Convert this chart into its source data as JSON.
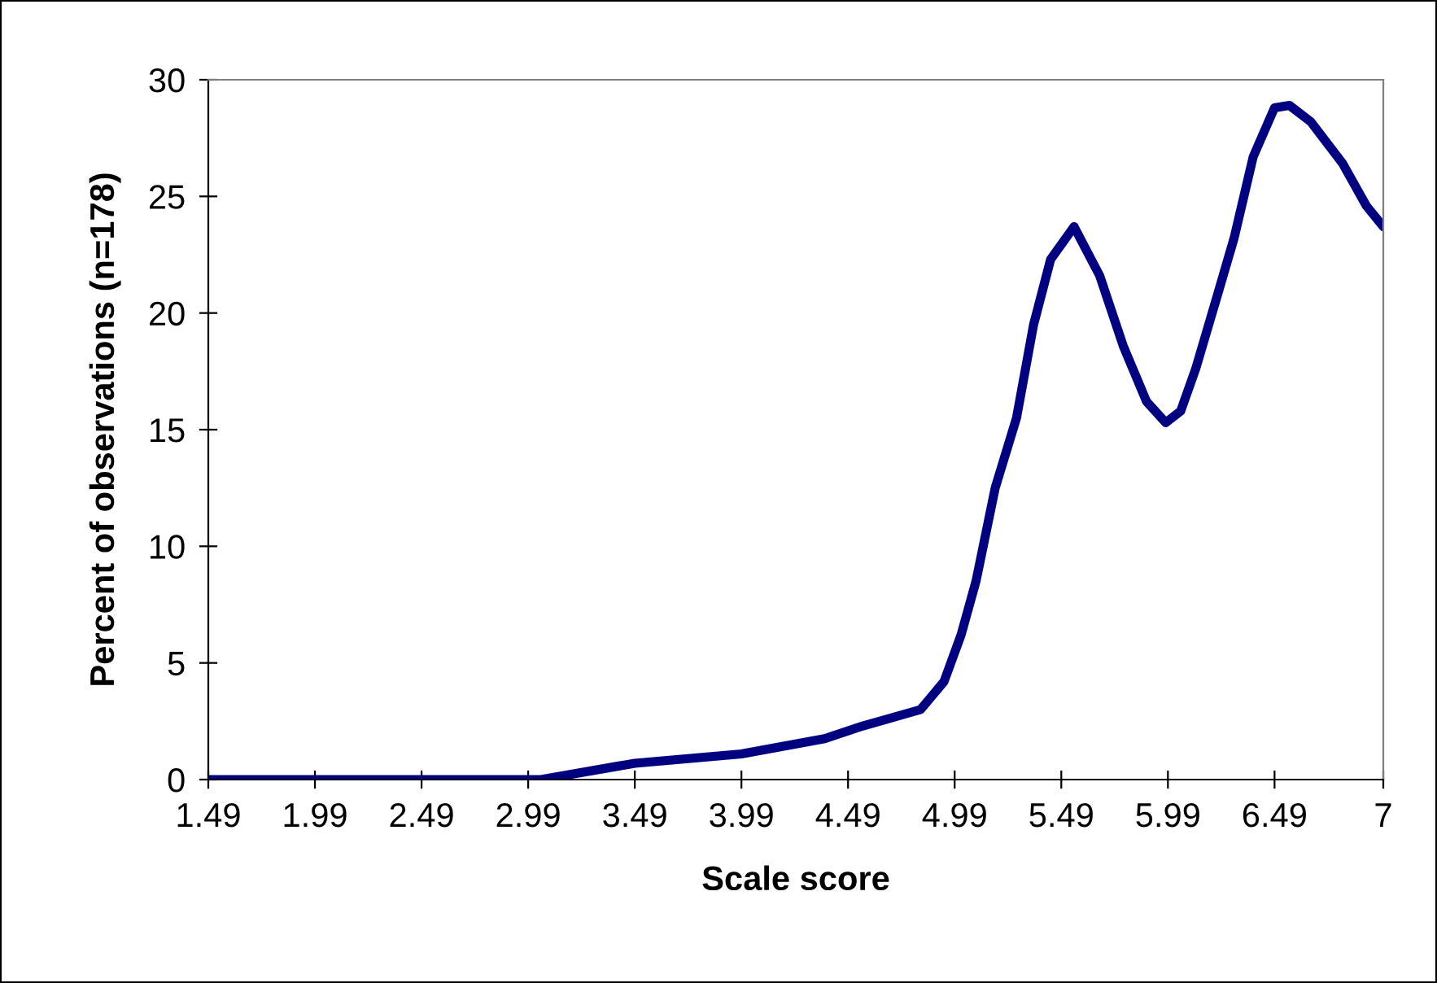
{
  "chart_data": {
    "type": "line",
    "xlabel": "Scale score",
    "ylabel": "Percent of observations (n=178)",
    "xlim": [
      1.49,
      7
    ],
    "xticks": [
      1.49,
      1.99,
      2.49,
      2.99,
      3.49,
      3.99,
      4.49,
      4.99,
      5.49,
      5.99,
      6.49,
      7
    ],
    "ylim": [
      0,
      30
    ],
    "yticks": [
      0,
      5,
      10,
      15,
      20,
      25,
      30
    ],
    "grid": false,
    "legend": false,
    "marker": "none",
    "line_style": "solid",
    "series": [
      {
        "color": "#000080",
        "x": [
          1.49,
          2.49,
          3.05,
          3.49,
          3.99,
          4.38,
          4.56,
          4.83,
          4.94,
          5.02,
          5.09,
          5.18,
          5.28,
          5.36,
          5.44,
          5.55,
          5.67,
          5.78,
          5.89,
          5.98,
          6.05,
          6.12,
          6.22,
          6.3,
          6.39,
          6.49,
          6.56,
          6.66,
          6.81,
          6.92,
          7.0
        ],
        "values": [
          0,
          0,
          0,
          0.7,
          1.1,
          1.75,
          2.3,
          3.0,
          4.2,
          6.2,
          8.5,
          12.5,
          15.5,
          19.5,
          22.3,
          23.7,
          21.6,
          18.6,
          16.2,
          15.3,
          15.8,
          17.6,
          20.7,
          23.2,
          26.7,
          28.8,
          28.9,
          28.2,
          26.4,
          24.6,
          23.7
        ]
      }
    ]
  }
}
